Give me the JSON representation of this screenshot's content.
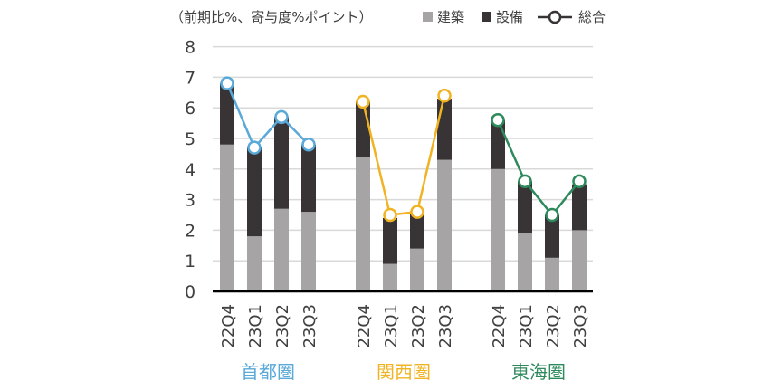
{
  "chart_data": {
    "type": "bar",
    "subtype": "stacked-bar-with-line",
    "unit_note": "（前期比%、寄与度%ポイント）",
    "ylim": [
      0,
      8
    ],
    "yticks": [
      "0",
      "1",
      "2",
      "3",
      "4",
      "5",
      "6",
      "7",
      "8"
    ],
    "grid": true,
    "legend_position": "top-right",
    "legend": [
      {
        "key": "construction",
        "label": "建築",
        "color": "#a6a4a5",
        "marker": "square"
      },
      {
        "key": "equipment",
        "label": "設備",
        "color": "#383435",
        "marker": "square"
      },
      {
        "key": "total",
        "label": "総合",
        "color": "#383435",
        "marker": "line-circle"
      }
    ],
    "groups": [
      {
        "name": "首都圏",
        "color": "#5aa9d9",
        "categories": [
          "22Q4",
          "23Q1",
          "23Q2",
          "23Q3"
        ],
        "construction": [
          4.8,
          1.8,
          2.7,
          2.6
        ],
        "equipment": [
          2.0,
          2.9,
          3.0,
          2.2
        ],
        "total": [
          6.8,
          4.7,
          5.7,
          4.8
        ]
      },
      {
        "name": "関西圏",
        "color": "#f0b323",
        "categories": [
          "22Q4",
          "23Q1",
          "23Q2",
          "23Q3"
        ],
        "construction": [
          4.4,
          0.9,
          1.4,
          4.3
        ],
        "equipment": [
          1.8,
          1.5,
          1.2,
          2.0
        ],
        "total": [
          6.2,
          2.5,
          2.6,
          6.4
        ]
      },
      {
        "name": "東海圏",
        "color": "#2e8a5c",
        "categories": [
          "22Q4",
          "23Q1",
          "23Q2",
          "23Q3"
        ],
        "construction": [
          4.0,
          1.9,
          1.1,
          2.0
        ],
        "equipment": [
          1.6,
          1.7,
          1.4,
          1.5
        ],
        "total": [
          5.6,
          3.6,
          2.5,
          3.6
        ]
      }
    ]
  }
}
